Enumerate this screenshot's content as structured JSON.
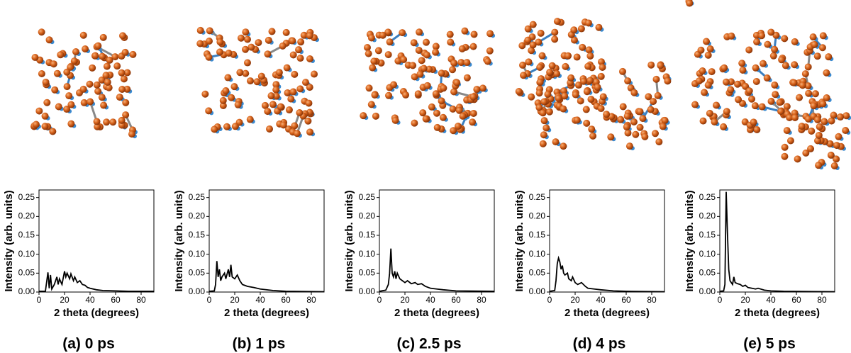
{
  "chart_data": [
    {
      "type": "line",
      "caption": "(a) 0 ps",
      "x_label": "2 theta (degrees)",
      "y_label": "Intensity (arb. units)",
      "color": "#000000",
      "x": [
        0,
        5,
        7,
        8,
        9,
        10,
        12,
        14,
        15,
        16,
        18,
        20,
        21,
        22,
        24,
        25,
        27,
        28,
        30,
        32,
        34,
        36,
        38,
        40,
        45,
        50,
        60,
        70,
        90
      ],
      "values": [
        0.002,
        0.002,
        0.052,
        0.01,
        0.045,
        0.008,
        0.02,
        0.04,
        0.02,
        0.035,
        0.02,
        0.055,
        0.04,
        0.05,
        0.035,
        0.048,
        0.03,
        0.04,
        0.025,
        0.03,
        0.02,
        0.018,
        0.012,
        0.01,
        0.006,
        0.004,
        0.003,
        0.002,
        0.002
      ],
      "xlim": [
        0,
        90
      ],
      "ylim": [
        0,
        0.27
      ],
      "xticks": [
        0,
        20,
        40,
        60,
        80
      ],
      "yticks": [
        {
          "value": 0,
          "label": "0.00"
        },
        {
          "value": 0.05,
          "label": "0.05"
        },
        {
          "value": 0.1,
          "label": "0.10"
        },
        {
          "value": 0.15,
          "label": "0.15"
        },
        {
          "value": 0.2,
          "label": "0.20"
        },
        {
          "value": 0.25,
          "label": "0.25"
        }
      ]
    },
    {
      "type": "line",
      "caption": "(b) 1 ps",
      "x_label": "2 theta (degrees)",
      "y_label": "Intensity (arb. units)",
      "color": "#000000",
      "x": [
        0,
        4,
        5,
        6,
        7,
        8,
        9,
        10,
        12,
        13,
        15,
        16,
        17,
        18,
        20,
        22,
        24,
        26,
        30,
        35,
        40,
        50,
        60,
        90
      ],
      "values": [
        0.002,
        0.003,
        0.02,
        0.082,
        0.04,
        0.06,
        0.03,
        0.04,
        0.05,
        0.035,
        0.06,
        0.04,
        0.072,
        0.04,
        0.035,
        0.045,
        0.03,
        0.02,
        0.015,
        0.012,
        0.008,
        0.004,
        0.002,
        0.001
      ],
      "xlim": [
        0,
        90
      ],
      "ylim": [
        0,
        0.27
      ],
      "xticks": [
        0,
        20,
        40,
        60,
        80
      ],
      "yticks": [
        {
          "value": 0,
          "label": "0.00"
        },
        {
          "value": 0.05,
          "label": "0.05"
        },
        {
          "value": 0.1,
          "label": "0.10"
        },
        {
          "value": 0.15,
          "label": "0.15"
        },
        {
          "value": 0.2,
          "label": "0.20"
        },
        {
          "value": 0.25,
          "label": "0.25"
        }
      ]
    },
    {
      "type": "line",
      "caption": "(c) 2.5 ps",
      "x_label": "2 theta (degrees)",
      "y_label": "Intensity (arb. units)",
      "color": "#000000",
      "x": [
        0,
        5,
        7,
        8,
        9,
        10,
        11,
        12,
        13,
        14,
        16,
        18,
        20,
        22,
        25,
        28,
        30,
        33,
        36,
        40,
        45,
        50,
        60,
        90
      ],
      "values": [
        0.002,
        0.005,
        0.02,
        0.05,
        0.115,
        0.05,
        0.04,
        0.055,
        0.035,
        0.05,
        0.035,
        0.03,
        0.025,
        0.03,
        0.022,
        0.025,
        0.02,
        0.022,
        0.015,
        0.01,
        0.008,
        0.006,
        0.003,
        0.002
      ],
      "xlim": [
        0,
        90
      ],
      "ylim": [
        0,
        0.27
      ],
      "xticks": [
        0,
        20,
        40,
        60,
        80
      ],
      "yticks": [
        {
          "value": 0,
          "label": "0.00"
        },
        {
          "value": 0.05,
          "label": "0.05"
        },
        {
          "value": 0.1,
          "label": "0.10"
        },
        {
          "value": 0.15,
          "label": "0.15"
        },
        {
          "value": 0.2,
          "label": "0.20"
        },
        {
          "value": 0.25,
          "label": "0.25"
        }
      ]
    },
    {
      "type": "line",
      "caption": "(d) 4 ps",
      "x_label": "2 theta (degrees)",
      "y_label": "Intensity (arb. units)",
      "color": "#000000",
      "x": [
        0,
        4,
        5,
        6,
        7,
        8,
        9,
        10,
        11,
        12,
        14,
        15,
        17,
        18,
        20,
        22,
        25,
        28,
        30,
        35,
        40,
        50,
        60,
        90
      ],
      "values": [
        0.002,
        0.004,
        0.03,
        0.075,
        0.09,
        0.08,
        0.06,
        0.07,
        0.05,
        0.045,
        0.05,
        0.035,
        0.03,
        0.04,
        0.025,
        0.02,
        0.025,
        0.015,
        0.01,
        0.008,
        0.006,
        0.003,
        0.002,
        0.001
      ],
      "xlim": [
        0,
        90
      ],
      "ylim": [
        0,
        0.27
      ],
      "xticks": [
        0,
        20,
        40,
        60,
        80
      ],
      "yticks": [
        {
          "value": 0,
          "label": "0.00"
        },
        {
          "value": 0.05,
          "label": "0.05"
        },
        {
          "value": 0.1,
          "label": "0.10"
        },
        {
          "value": 0.15,
          "label": "0.15"
        },
        {
          "value": 0.2,
          "label": "0.20"
        },
        {
          "value": 0.25,
          "label": "0.25"
        }
      ]
    },
    {
      "type": "line",
      "caption": "(e) 5 ps",
      "x_label": "2 theta (degrees)",
      "y_label": "Intensity (arb. units)",
      "color": "#000000",
      "x": [
        0,
        3,
        4,
        5,
        6,
        7,
        8,
        10,
        11,
        12,
        14,
        16,
        18,
        20,
        22,
        25,
        28,
        30,
        35,
        40,
        50,
        90
      ],
      "values": [
        0.002,
        0.003,
        0.02,
        0.265,
        0.155,
        0.06,
        0.03,
        0.02,
        0.04,
        0.025,
        0.022,
        0.02,
        0.015,
        0.018,
        0.012,
        0.01,
        0.008,
        0.01,
        0.005,
        0.003,
        0.002,
        0.001
      ],
      "xlim": [
        0,
        90
      ],
      "ylim": [
        0,
        0.27
      ],
      "xticks": [
        0,
        20,
        40,
        60,
        80
      ],
      "yticks": [
        {
          "value": 0,
          "label": "0.00"
        },
        {
          "value": 0.05,
          "label": "0.05"
        },
        {
          "value": 0.1,
          "label": "0.10"
        },
        {
          "value": 0.15,
          "label": "0.15"
        },
        {
          "value": 0.2,
          "label": "0.20"
        },
        {
          "value": 0.25,
          "label": "0.25"
        }
      ]
    }
  ]
}
